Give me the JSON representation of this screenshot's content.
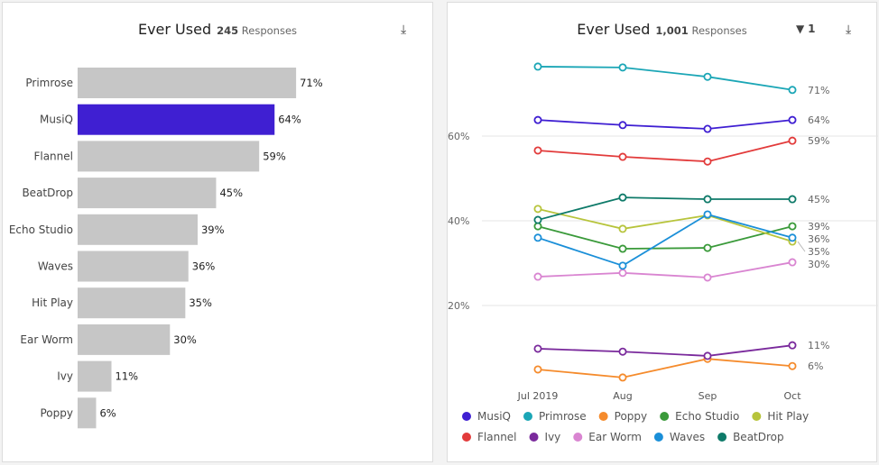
{
  "left": {
    "title": "Ever Used",
    "count": "245",
    "count_label": "Responses",
    "download_icon": "download-icon"
  },
  "right": {
    "title": "Ever Used",
    "count": "1,001",
    "count_label": "Responses",
    "filter_icon": "filter-icon",
    "filter_count": "1",
    "download_icon": "download-icon"
  },
  "chart_data": [
    {
      "type": "bar",
      "orientation": "horizontal",
      "categories": [
        "Primrose",
        "MusiQ",
        "Flannel",
        "BeatDrop",
        "Echo Studio",
        "Waves",
        "Hit Play",
        "Ear Worm",
        "Ivy",
        "Poppy"
      ],
      "values": [
        71,
        64,
        59,
        45,
        39,
        36,
        35,
        30,
        11,
        6
      ],
      "data_labels": [
        "71%",
        "64%",
        "59%",
        "45%",
        "39%",
        "36%",
        "35%",
        "30%",
        "11%",
        "6%"
      ],
      "highlight": "MusiQ",
      "colors": {
        "default": "#c6c6c6",
        "highlight": "#3f1fd2"
      },
      "unit": "%",
      "grid": false
    },
    {
      "type": "line",
      "x": [
        "Jul 2019",
        "Aug",
        "Sep",
        "Oct"
      ],
      "ylim": [
        0,
        80
      ],
      "yticks": [
        "20%",
        "40%",
        "60%"
      ],
      "ytick_values": [
        20,
        40,
        60
      ],
      "grid": true,
      "legend": "bottom",
      "series": [
        {
          "name": "MusiQ",
          "color": "#3f1fd2",
          "values": [
            63.8,
            62.6,
            61.7,
            63.8
          ],
          "end_label": "64%"
        },
        {
          "name": "Primrose",
          "color": "#1ba6b6",
          "values": [
            76.4,
            76.2,
            74.0,
            70.9
          ],
          "end_label": "71%"
        },
        {
          "name": "Poppy",
          "color": "#f58b2c",
          "values": [
            4.9,
            3.0,
            7.4,
            5.7
          ],
          "end_label": "6%"
        },
        {
          "name": "Echo Studio",
          "color": "#3a9a3a",
          "values": [
            38.7,
            33.4,
            33.6,
            38.7
          ],
          "end_label": "39%"
        },
        {
          "name": "Hit Play",
          "color": "#b7c43b",
          "values": [
            42.8,
            38.1,
            41.3,
            35.1
          ],
          "end_label": "35%"
        },
        {
          "name": "Flannel",
          "color": "#e23b3b",
          "values": [
            56.6,
            55.1,
            54.0,
            58.9
          ],
          "end_label": "59%"
        },
        {
          "name": "Ivy",
          "color": "#7a2a9c",
          "values": [
            9.8,
            9.1,
            8.1,
            10.6
          ],
          "end_label": "11%"
        },
        {
          "name": "Ear Worm",
          "color": "#d985d1",
          "values": [
            26.8,
            27.7,
            26.6,
            30.2
          ],
          "end_label": "30%"
        },
        {
          "name": "Waves",
          "color": "#1a8fd8",
          "values": [
            36.0,
            29.4,
            41.5,
            36.0
          ],
          "end_label": "36%"
        },
        {
          "name": "BeatDrop",
          "color": "#0e7a69",
          "values": [
            40.2,
            45.5,
            45.1,
            45.1
          ],
          "end_label": "45%"
        }
      ]
    }
  ]
}
